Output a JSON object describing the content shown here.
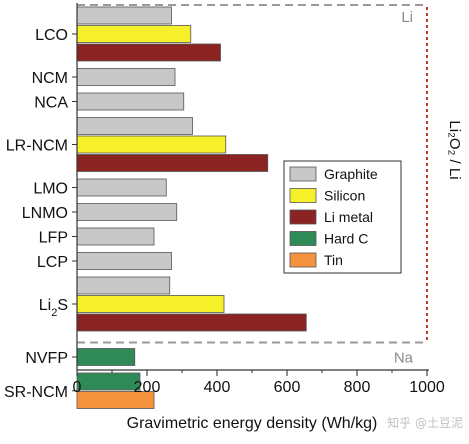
{
  "chart_data": {
    "type": "bar",
    "orientation": "horizontal",
    "xlabel": "Gravimetric energy density (Wh/kg)",
    "xlim": [
      0,
      1000
    ],
    "xticks": [
      0,
      200,
      400,
      600,
      800,
      1000
    ],
    "legend": {
      "placement": "right",
      "entries": [
        {
          "name": "Graphite",
          "color": "#c8c8c8"
        },
        {
          "name": "Silicon",
          "color": "#f5f02a"
        },
        {
          "name": "Li metal",
          "color": "#8b2323"
        },
        {
          "name": "Hard C",
          "color": "#2e8b57"
        },
        {
          "name": "Tin",
          "color": "#f5923e"
        }
      ]
    },
    "groups": [
      {
        "label": "LCO",
        "sub": "",
        "bars": [
          {
            "anode": "Graphite",
            "value": 270
          },
          {
            "anode": "Silicon",
            "value": 325
          },
          {
            "anode": "Li metal",
            "value": 410
          }
        ]
      },
      {
        "label": "NCM",
        "sub": "",
        "bars": [
          {
            "anode": "Graphite",
            "value": 280
          }
        ]
      },
      {
        "label": "NCA",
        "sub": "",
        "bars": [
          {
            "anode": "Graphite",
            "value": 305
          }
        ]
      },
      {
        "label": "LR-NCM",
        "sub": "",
        "bars": [
          {
            "anode": "Graphite",
            "value": 330
          },
          {
            "anode": "Silicon",
            "value": 425
          },
          {
            "anode": "Li metal",
            "value": 545
          }
        ]
      },
      {
        "label": "LMO",
        "sub": "",
        "bars": [
          {
            "anode": "Graphite",
            "value": 255
          }
        ]
      },
      {
        "label": "LNMO",
        "sub": "",
        "bars": [
          {
            "anode": "Graphite",
            "value": 285
          }
        ]
      },
      {
        "label": "LFP",
        "sub": "",
        "bars": [
          {
            "anode": "Graphite",
            "value": 220
          }
        ]
      },
      {
        "label": "LCP",
        "sub": "",
        "bars": [
          {
            "anode": "Graphite",
            "value": 270
          }
        ]
      },
      {
        "label": "Li",
        "sub": "2",
        "suffix": "S",
        "bars": [
          {
            "anode": "Graphite",
            "value": 265
          },
          {
            "anode": "Silicon",
            "value": 420
          },
          {
            "anode": "Li metal",
            "value": 655
          }
        ]
      },
      {
        "label": "NVFP",
        "sub": "",
        "bars": [
          {
            "anode": "Hard C",
            "value": 165
          }
        ]
      },
      {
        "label": "SR-NCM",
        "sub": "",
        "bars": [
          {
            "anode": "Hard C",
            "value": 180
          },
          {
            "anode": "Tin",
            "value": 220
          }
        ]
      }
    ],
    "annotations": {
      "li_region": "Li",
      "na_region": "Na",
      "li2o2_label": "Li₂O₂ / Li",
      "li2o2_value": 1000
    }
  },
  "watermark": "知乎 @土豆泥"
}
